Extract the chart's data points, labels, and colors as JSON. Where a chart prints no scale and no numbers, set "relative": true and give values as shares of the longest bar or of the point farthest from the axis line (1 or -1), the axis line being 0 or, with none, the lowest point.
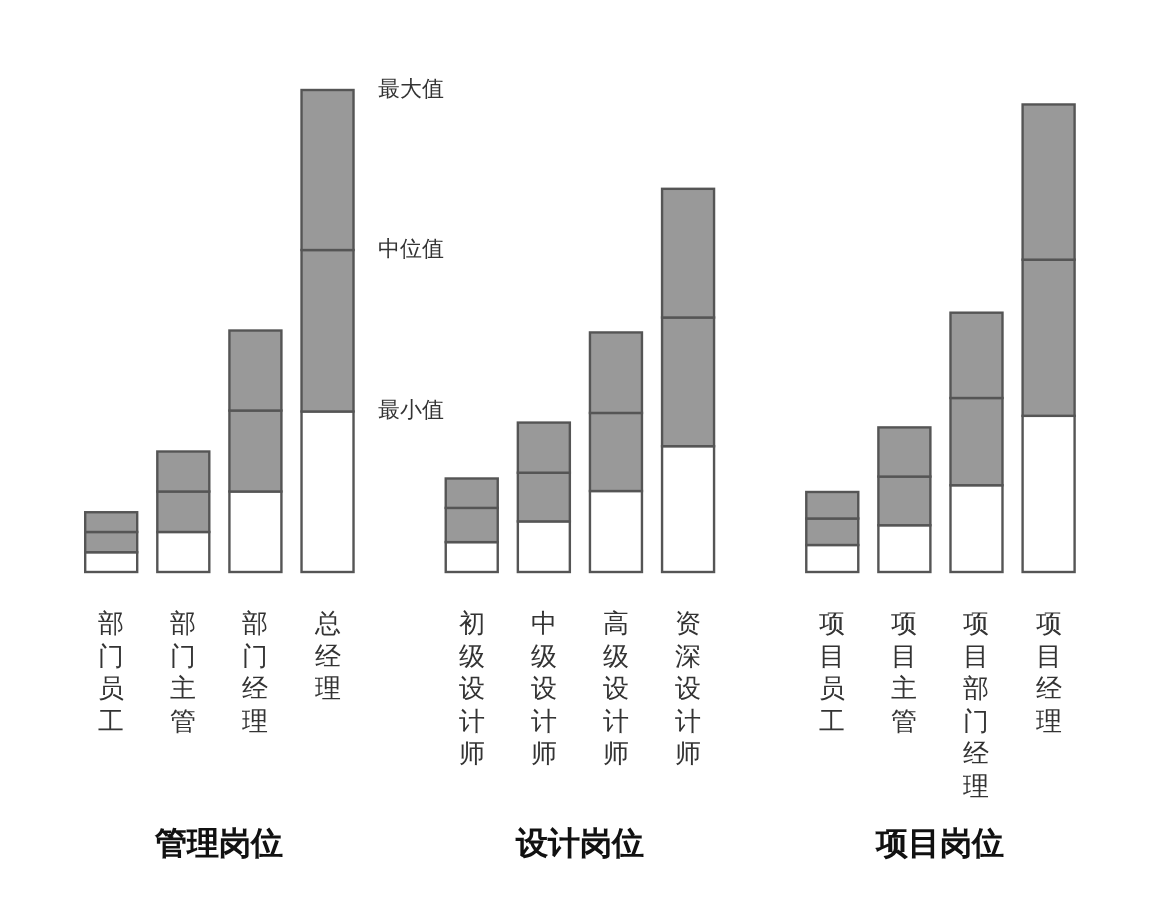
{
  "chart_data": {
    "type": "bar",
    "stacked": true,
    "relative": true,
    "categories": [
      "部门员工",
      "部门主管",
      "部门经理",
      "总经理",
      null,
      "初级设计师",
      "中级设计师",
      "高级设计师",
      "资深设计师",
      null,
      "项目员工",
      "项目主管",
      "项目部门经理",
      "项目经理"
    ],
    "series": [
      {
        "color": "#ffffff",
        "values": [
          0.041,
          0.083,
          0.167,
          0.333,
          null,
          0.062,
          0.105,
          0.168,
          0.261,
          null,
          0.056,
          0.097,
          0.18,
          0.324
        ]
      },
      {
        "color": "#999999",
        "values": [
          0.042,
          0.084,
          0.168,
          0.335,
          null,
          0.071,
          0.101,
          0.162,
          0.267,
          null,
          0.055,
          0.101,
          0.181,
          0.324
        ]
      },
      {
        "color": "#999999",
        "values": [
          0.041,
          0.083,
          0.166,
          0.332,
          null,
          0.061,
          0.104,
          0.167,
          0.267,
          null,
          0.055,
          0.102,
          0.177,
          0.322
        ]
      }
    ],
    "annotations": [
      {
        "text": "最大值",
        "x": "总经理",
        "y": 1
      },
      {
        "text": "中位值",
        "x": "总经理",
        "y": 0.668
      },
      {
        "text": "最小值",
        "x": "总经理",
        "y": 0.333
      },
      "管理岗位",
      "设计岗位",
      "项目岗位"
    ]
  }
}
